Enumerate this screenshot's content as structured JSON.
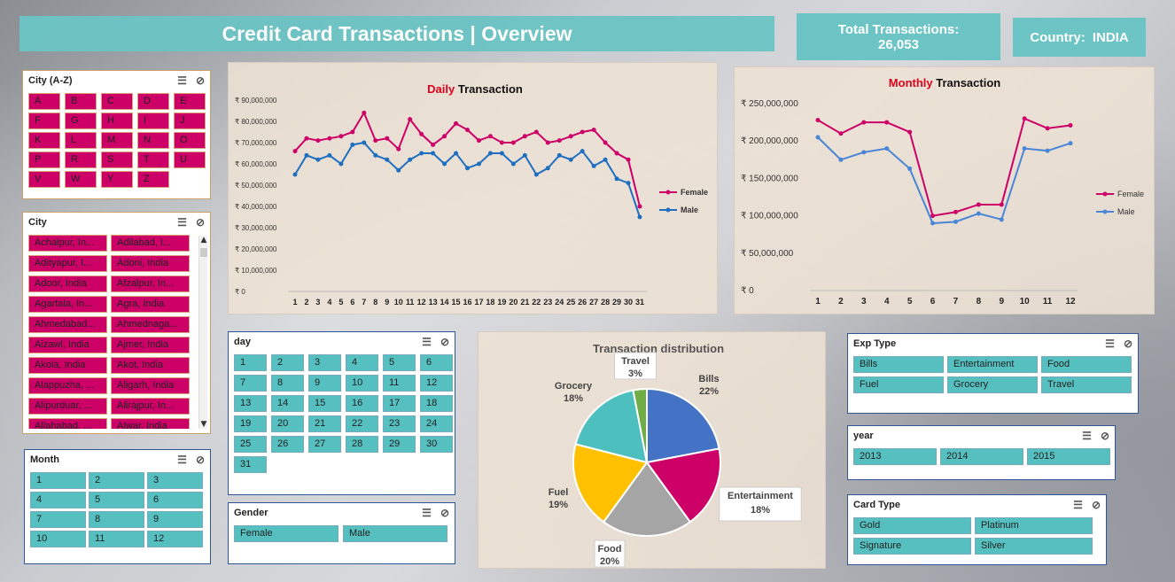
{
  "title": "Credit Card Transactions | Overview",
  "kpi": {
    "total_label": "Total Transactions:",
    "total_value": "26,053",
    "country_label": "Country:",
    "country_value": "INDIA"
  },
  "city_az": {
    "title": "City (A-Z)",
    "items": [
      "A",
      "B",
      "C",
      "D",
      "E",
      "F",
      "G",
      "H",
      "I",
      "J",
      "K",
      "L",
      "M",
      "N",
      "O",
      "P",
      "R",
      "S",
      "T",
      "U",
      "V",
      "W",
      "Y",
      "Z"
    ]
  },
  "city": {
    "title": "City",
    "items": [
      "Achalpur, In...",
      "Adilabad, I...",
      "Adityapur, I...",
      "Adoni, India",
      "Adoor, India",
      "Afzalpur, In...",
      "Agartala, In...",
      "Agra, India",
      "Ahmedabad...",
      "Ahmednaga...",
      "Aizawl, India",
      "Ajmer, India",
      "Akola, India",
      "Akot, India",
      "Alappuzha, ...",
      "Aligarh, India",
      "Alipurduar, ...",
      "Alirajpur, In...",
      "Allahabad, ...",
      "Alwar, India"
    ]
  },
  "month": {
    "title": "Month",
    "items": [
      "1",
      "2",
      "3",
      "4",
      "5",
      "6",
      "7",
      "8",
      "9",
      "10",
      "11",
      "12"
    ]
  },
  "day": {
    "title": "day",
    "items": [
      "1",
      "2",
      "3",
      "4",
      "5",
      "6",
      "7",
      "8",
      "9",
      "10",
      "11",
      "12",
      "13",
      "14",
      "15",
      "16",
      "17",
      "18",
      "19",
      "20",
      "21",
      "22",
      "23",
      "24",
      "25",
      "26",
      "27",
      "28",
      "29",
      "30",
      "31"
    ]
  },
  "gender": {
    "title": "Gender",
    "items": [
      "Female",
      "Male"
    ]
  },
  "exptype": {
    "title": "Exp Type",
    "items": [
      "Bills",
      "Entertainment",
      "Food",
      "Fuel",
      "Grocery",
      "Travel"
    ]
  },
  "year": {
    "title": "year",
    "items": [
      "2013",
      "2014",
      "2015"
    ]
  },
  "cardtype": {
    "title": "Card Type",
    "items": [
      "Gold",
      "Platinum",
      "Signature",
      "Silver"
    ]
  },
  "chart_data": [
    {
      "type": "line",
      "title_accent": "Daily",
      "title_rest": "Transaction",
      "x": [
        1,
        2,
        3,
        4,
        5,
        6,
        7,
        8,
        9,
        10,
        11,
        12,
        13,
        14,
        15,
        16,
        17,
        18,
        19,
        20,
        21,
        22,
        23,
        24,
        25,
        26,
        27,
        28,
        29,
        30,
        31
      ],
      "yticks": [
        "₹ 0",
        "₹ 10,000,000",
        "₹ 20,000,000",
        "₹ 30,000,000",
        "₹ 40,000,000",
        "₹ 50,000,000",
        "₹ 60,000,000",
        "₹ 70,000,000",
        "₹ 80,000,000",
        "₹ 90,000,000"
      ],
      "ylim": [
        0,
        90000000
      ],
      "series": [
        {
          "name": "Female",
          "color": "#cc0066",
          "values": [
            66000000,
            72000000,
            71000000,
            72000000,
            73000000,
            75000000,
            84000000,
            71000000,
            72000000,
            67000000,
            81000000,
            74000000,
            69000000,
            73000000,
            79000000,
            76000000,
            71000000,
            73000000,
            70000000,
            70000000,
            73000000,
            75000000,
            70000000,
            71000000,
            73000000,
            75000000,
            76000000,
            70000000,
            65000000,
            62000000,
            40000000
          ]
        },
        {
          "name": "Male",
          "color": "#1f6fc1",
          "values": [
            55000000,
            64000000,
            62000000,
            64000000,
            60000000,
            69000000,
            70000000,
            64000000,
            62000000,
            57000000,
            62000000,
            65000000,
            65000000,
            60000000,
            65000000,
            58000000,
            60000000,
            65000000,
            65000000,
            60000000,
            64000000,
            55000000,
            58000000,
            64000000,
            62000000,
            66000000,
            59000000,
            62000000,
            53000000,
            51000000,
            35000000
          ]
        }
      ],
      "legend": "right"
    },
    {
      "type": "line",
      "title_accent": "Monthly",
      "title_rest": "Transaction",
      "x": [
        1,
        2,
        3,
        4,
        5,
        6,
        7,
        8,
        9,
        10,
        11,
        12
      ],
      "yticks": [
        "₹ 0",
        "₹ 50,000,000",
        "₹ 100,000,000",
        "₹ 150,000,000",
        "₹ 200,000,000",
        "₹ 250,000,000"
      ],
      "ylim": [
        0,
        250000000
      ],
      "series": [
        {
          "name": "Female",
          "color": "#cc0066",
          "values": [
            228000000,
            210000000,
            225000000,
            225000000,
            212000000,
            100000000,
            105000000,
            115000000,
            115000000,
            230000000,
            217000000,
            221000000
          ]
        },
        {
          "name": "Male",
          "color": "#4a86d8",
          "values": [
            205000000,
            175000000,
            185000000,
            190000000,
            163000000,
            90000000,
            92000000,
            103000000,
            95000000,
            190000000,
            187000000,
            197000000
          ]
        }
      ],
      "legend": "right"
    },
    {
      "type": "pie",
      "title": "Transaction distribution",
      "slices": [
        {
          "label": "Bills",
          "pct": "22%",
          "value": 22,
          "color": "#4472c4"
        },
        {
          "label": "Entertainment",
          "pct": "18%",
          "value": 18,
          "color": "#cc0066"
        },
        {
          "label": "Food",
          "pct": "20%",
          "value": 20,
          "color": "#a5a5a5"
        },
        {
          "label": "Fuel",
          "pct": "19%",
          "value": 19,
          "color": "#ffc000"
        },
        {
          "label": "Grocery",
          "pct": "18%",
          "value": 18,
          "color": "#4dbfbf"
        },
        {
          "label": "Travel",
          "pct": "3%",
          "value": 3,
          "color": "#70ad47"
        }
      ]
    }
  ]
}
